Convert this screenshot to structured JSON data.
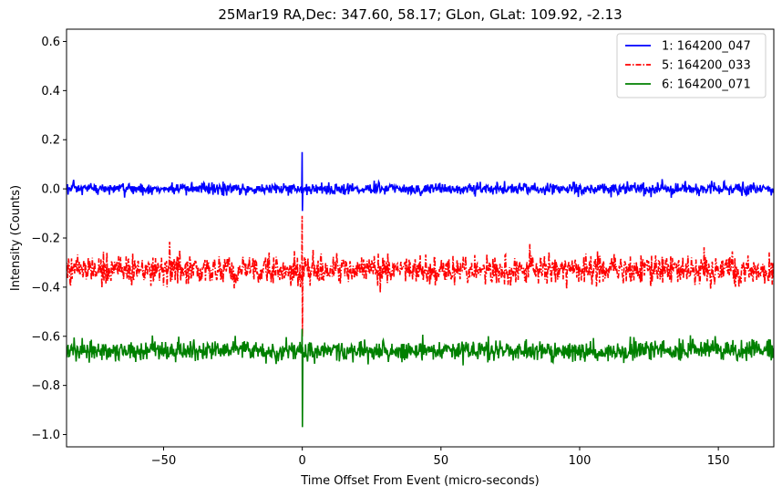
{
  "chart_data": {
    "type": "line",
    "title": "25Mar19 RA,Dec:  347.60,  58.17; GLon, GLat:  109.92,  -2.13",
    "xlabel": "Time Offset From Event (micro-seconds)",
    "ylabel": "Intensity (Counts)",
    "xlim": [
      -85,
      170
    ],
    "ylim": [
      -1.05,
      0.65
    ],
    "xticks": [
      -50,
      0,
      50,
      100,
      150
    ],
    "xtick_labels": [
      "−50",
      "0",
      "50",
      "100",
      "150"
    ],
    "yticks": [
      -1.0,
      -0.8,
      -0.6,
      -0.4,
      -0.2,
      0.0,
      0.2,
      0.4,
      0.6
    ],
    "ytick_labels": [
      "−1.0",
      "−0.8",
      "−0.6",
      "−0.4",
      "−0.2",
      "0.0",
      "0.2",
      "0.4",
      "0.6"
    ],
    "grid": false,
    "legend_position": "top-right",
    "series": [
      {
        "name": "1: 164200_047",
        "color": "#0000ff",
        "style": "solid",
        "baseline": 0.0,
        "noise_amplitude": 0.012,
        "spike_at_x": 0,
        "spike_max": 0.15,
        "spike_min": -0.09
      },
      {
        "name": "5: 164200_033",
        "color": "#ff0000",
        "style": "dashdot",
        "baseline": -0.33,
        "noise_amplitude": 0.03,
        "spike_at_x": 0,
        "spike_max": -0.11,
        "spike_min": -0.6
      },
      {
        "name": "6: 164200_071",
        "color": "#008000",
        "style": "solid",
        "baseline": -0.66,
        "noise_amplitude": 0.02,
        "spike_at_x": 0,
        "spike_max": -0.57,
        "spike_min": -0.97
      }
    ]
  }
}
